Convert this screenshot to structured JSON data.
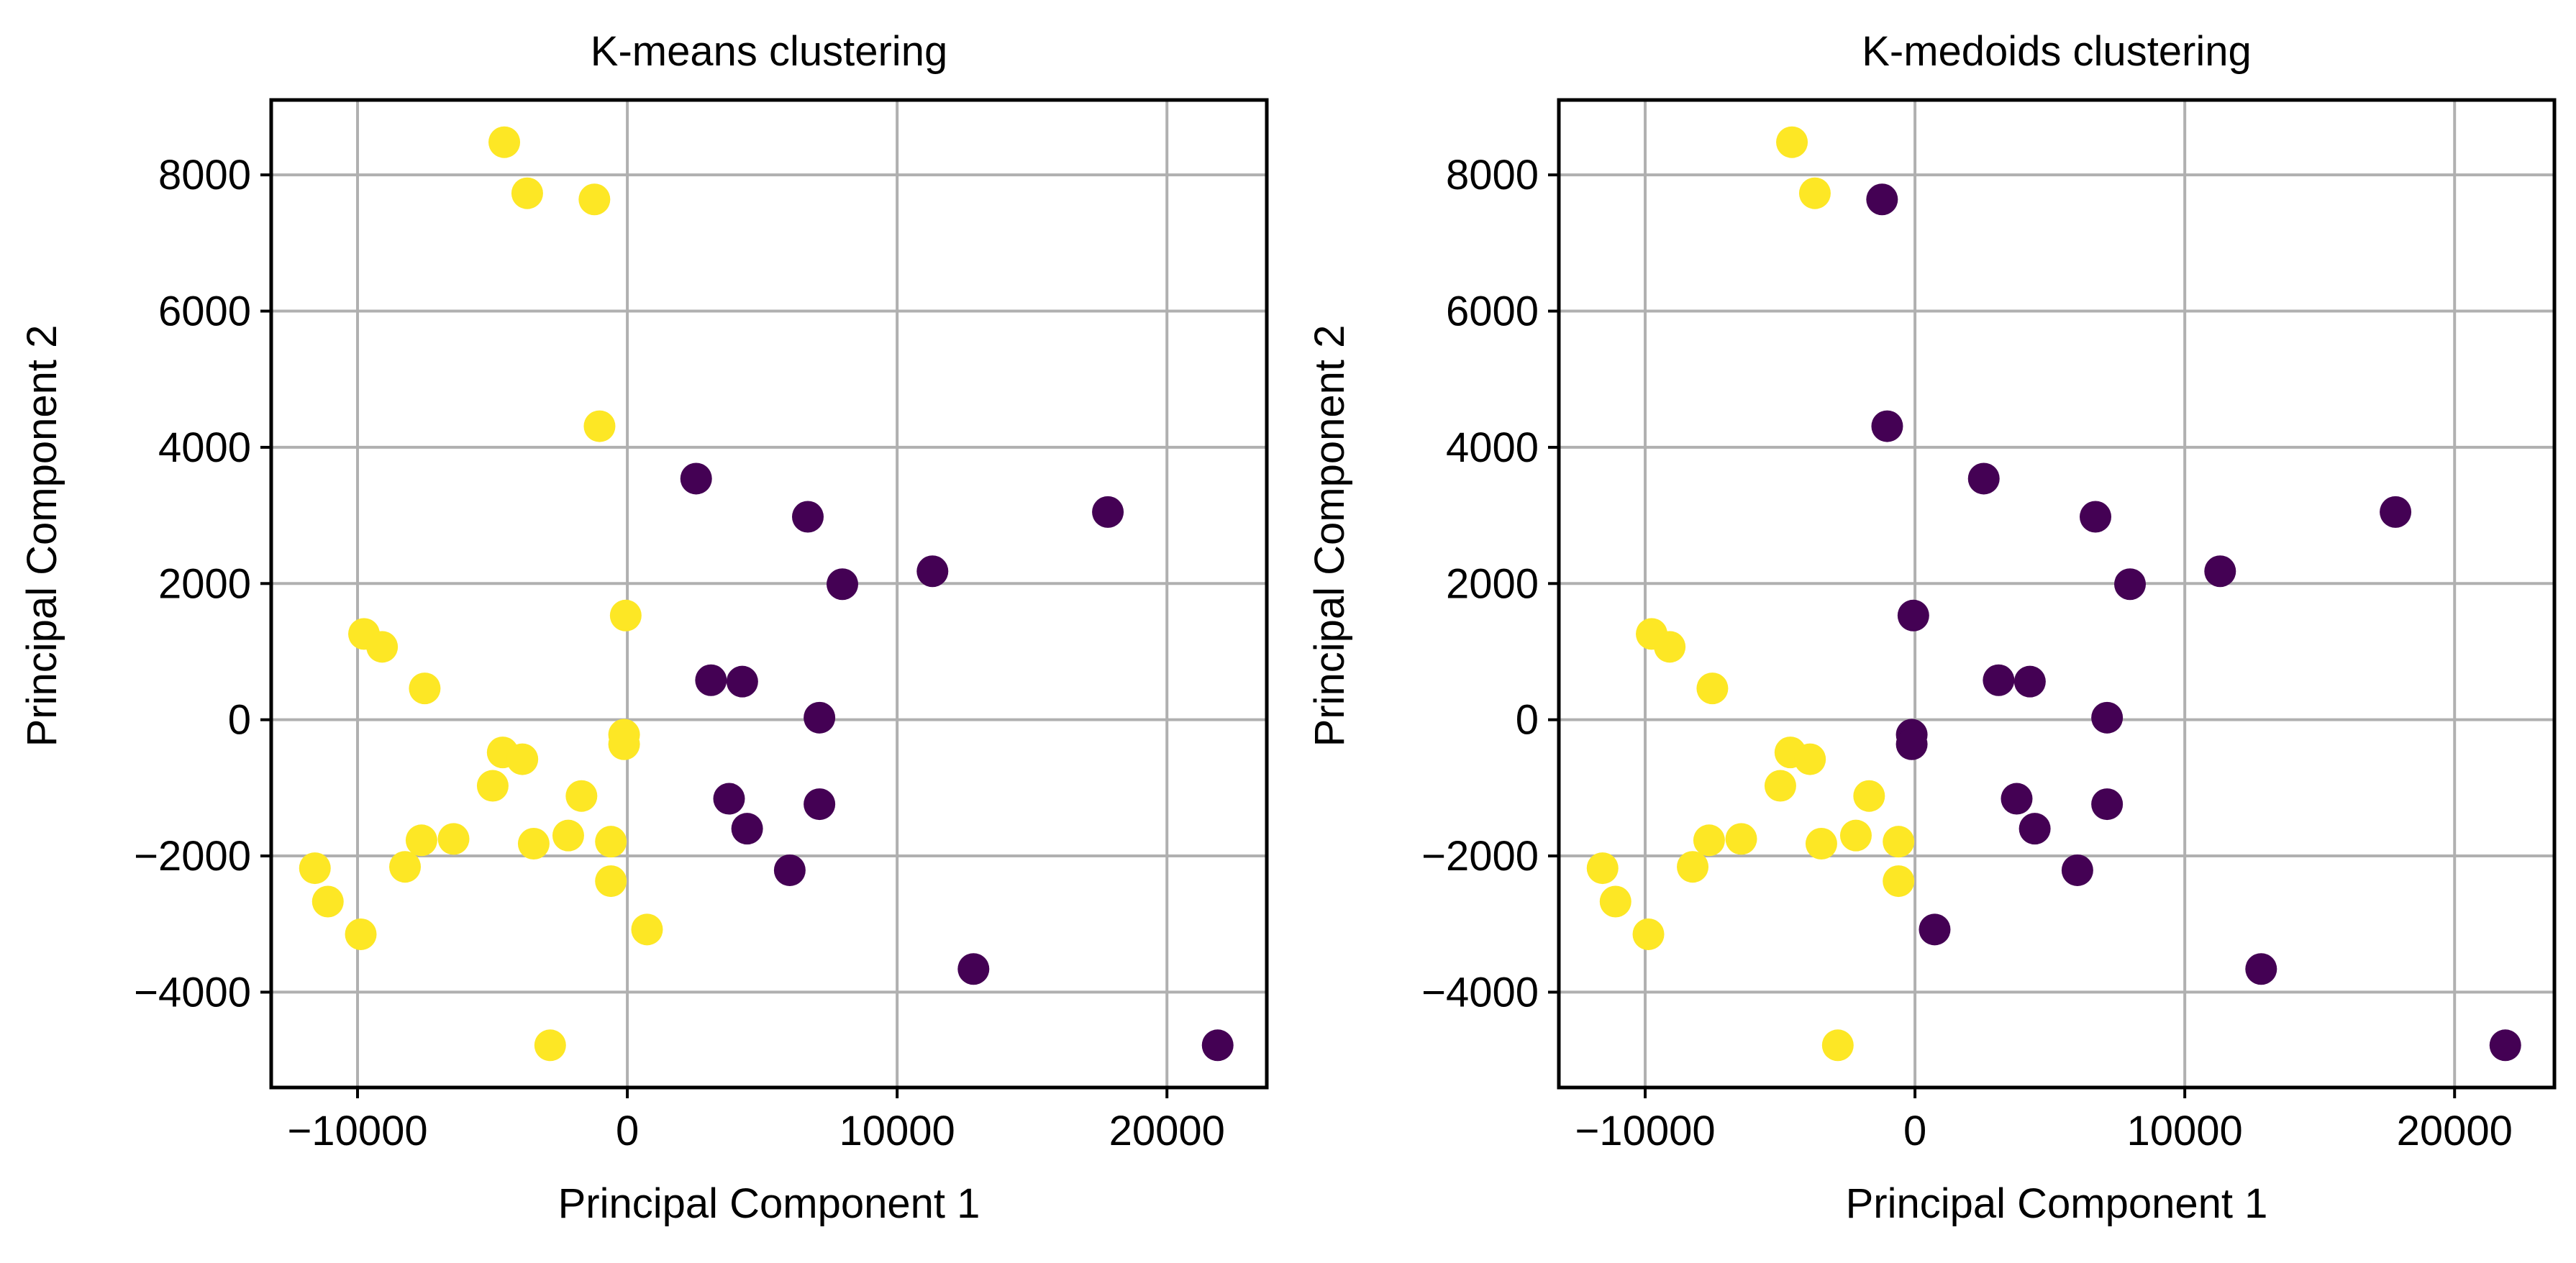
{
  "figure": {
    "colors": {
      "cluster_0": "#440154",
      "cluster_1": "#fde725",
      "grid": "#b0b0b0",
      "axes": "#000000"
    }
  },
  "chart_data": [
    {
      "type": "scatter",
      "title": "K-means clustering",
      "xlabel": "Principal Component 1",
      "ylabel": "Principal Component 2",
      "xlim": [
        -13200,
        23700
      ],
      "ylim": [
        -5400,
        9100
      ],
      "xticks": [
        -10000,
        0,
        10000,
        20000
      ],
      "xtick_labels": [
        "−10000",
        "0",
        "10000",
        "20000"
      ],
      "yticks": [
        -4000,
        -2000,
        0,
        2000,
        4000,
        6000,
        8000
      ],
      "ytick_labels": [
        "−4000",
        "−2000",
        "0",
        "2000",
        "4000",
        "6000",
        "8000"
      ],
      "grid": true,
      "legend": null,
      "series": [
        {
          "name": "cluster 1 (yellow)",
          "color": "#fde725",
          "points": [
            [
              -4560,
              8480
            ],
            [
              -3710,
              7730
            ],
            [
              -1220,
              7640
            ],
            [
              -1030,
              4310
            ],
            [
              -60,
              1530
            ],
            [
              -9760,
              1260
            ],
            [
              -9090,
              1070
            ],
            [
              -7510,
              460
            ],
            [
              -4620,
              -480
            ],
            [
              -3890,
              -580
            ],
            [
              -120,
              -220
            ],
            [
              -120,
              -360
            ],
            [
              -4990,
              -970
            ],
            [
              -1700,
              -1120
            ],
            [
              -7630,
              -1770
            ],
            [
              -6440,
              -1750
            ],
            [
              -3470,
              -1820
            ],
            [
              -2190,
              -1700
            ],
            [
              -610,
              -1790
            ],
            [
              -11580,
              -2180
            ],
            [
              -8240,
              -2160
            ],
            [
              -610,
              -2370
            ],
            [
              -11100,
              -2670
            ],
            [
              -9880,
              -3150
            ],
            [
              730,
              -3080
            ],
            [
              -2860,
              -4780
            ]
          ]
        },
        {
          "name": "cluster 0 (purple)",
          "color": "#440154",
          "points": [
            [
              2550,
              3540
            ],
            [
              6690,
              2980
            ],
            [
              11310,
              2180
            ],
            [
              7970,
              1990
            ],
            [
              17810,
              3050
            ],
            [
              3100,
              580
            ],
            [
              4260,
              560
            ],
            [
              7120,
              30
            ],
            [
              3770,
              -1160
            ],
            [
              7120,
              -1240
            ],
            [
              4440,
              -1600
            ],
            [
              6020,
              -2210
            ],
            [
              12830,
              -3660
            ],
            [
              21880,
              -4780
            ]
          ]
        }
      ]
    },
    {
      "type": "scatter",
      "title": "K-medoids clustering",
      "xlabel": "Principal Component 1",
      "ylabel": "Principal Component 2",
      "xlim": [
        -13200,
        23700
      ],
      "ylim": [
        -5400,
        9100
      ],
      "xticks": [
        -10000,
        0,
        10000,
        20000
      ],
      "xtick_labels": [
        "−10000",
        "0",
        "10000",
        "20000"
      ],
      "yticks": [
        -4000,
        -2000,
        0,
        2000,
        4000,
        6000,
        8000
      ],
      "ytick_labels": [
        "−4000",
        "−2000",
        "0",
        "2000",
        "4000",
        "6000",
        "8000"
      ],
      "grid": true,
      "legend": null,
      "series": [
        {
          "name": "cluster 1 (yellow)",
          "color": "#fde725",
          "points": [
            [
              -4560,
              8480
            ],
            [
              -3710,
              7730
            ],
            [
              -9760,
              1260
            ],
            [
              -9090,
              1070
            ],
            [
              -7510,
              460
            ],
            [
              -4620,
              -480
            ],
            [
              -3890,
              -580
            ],
            [
              -4990,
              -970
            ],
            [
              -1700,
              -1120
            ],
            [
              -7630,
              -1770
            ],
            [
              -6440,
              -1750
            ],
            [
              -3470,
              -1820
            ],
            [
              -2190,
              -1700
            ],
            [
              -610,
              -1790
            ],
            [
              -11580,
              -2180
            ],
            [
              -8240,
              -2160
            ],
            [
              -610,
              -2370
            ],
            [
              -11100,
              -2670
            ],
            [
              -9880,
              -3150
            ],
            [
              -2860,
              -4780
            ]
          ]
        },
        {
          "name": "cluster 0 (purple)",
          "color": "#440154",
          "points": [
            [
              -1220,
              7640
            ],
            [
              -1030,
              4310
            ],
            [
              -60,
              1530
            ],
            [
              -120,
              -220
            ],
            [
              -120,
              -360
            ],
            [
              730,
              -3080
            ],
            [
              2550,
              3540
            ],
            [
              6690,
              2980
            ],
            [
              11310,
              2180
            ],
            [
              7970,
              1990
            ],
            [
              17810,
              3050
            ],
            [
              3100,
              580
            ],
            [
              4260,
              560
            ],
            [
              7120,
              30
            ],
            [
              3770,
              -1160
            ],
            [
              7120,
              -1240
            ],
            [
              4440,
              -1600
            ],
            [
              6020,
              -2210
            ],
            [
              12830,
              -3660
            ],
            [
              21880,
              -4780
            ]
          ]
        }
      ]
    }
  ]
}
